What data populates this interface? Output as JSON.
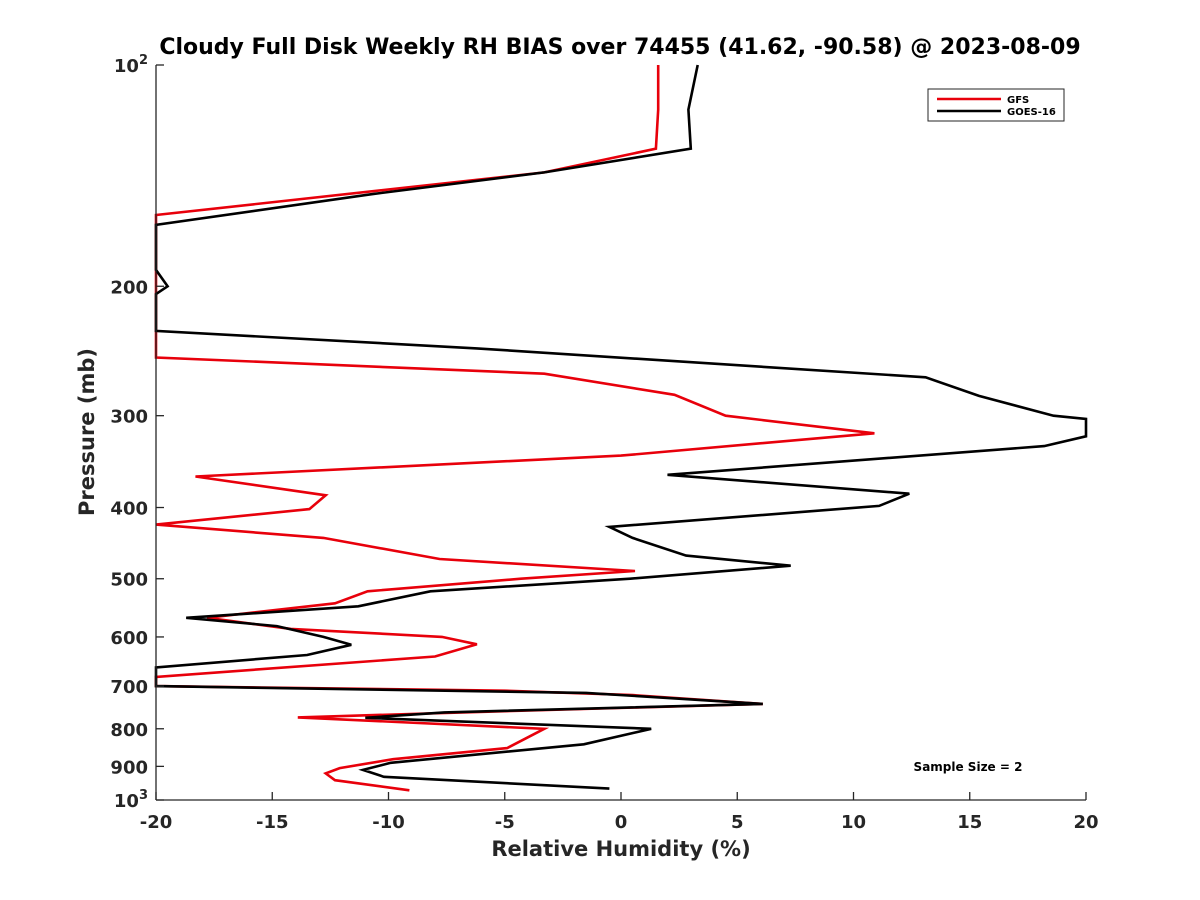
{
  "chart_data": {
    "type": "line",
    "title": "Cloudy Full Disk Weekly RH BIAS over 74455 (41.62, -90.58) @ 2023-08-09",
    "xlabel": "Relative Humidity (%)",
    "ylabel": "Pressure (mb)",
    "xlim": [
      -20,
      20
    ],
    "ylim": [
      100,
      1000
    ],
    "yscale": "log",
    "y_reversed": true,
    "x_ticks": [
      -20,
      -15,
      -10,
      -5,
      0,
      5,
      10,
      15,
      20
    ],
    "x_tick_labels": [
      "-20",
      "-15",
      "-10",
      "-5",
      "0",
      "5",
      "10",
      "15",
      "20"
    ],
    "y_ticks": [
      {
        "value": 100,
        "label": "10",
        "sup": "2"
      },
      {
        "value": 200,
        "label": "200"
      },
      {
        "value": 300,
        "label": "300"
      },
      {
        "value": 400,
        "label": "400"
      },
      {
        "value": 500,
        "label": "500"
      },
      {
        "value": 600,
        "label": "600"
      },
      {
        "value": 700,
        "label": "700"
      },
      {
        "value": 800,
        "label": "800"
      },
      {
        "value": 900,
        "label": "900"
      },
      {
        "value": 1000,
        "label": "10",
        "sup": "3"
      }
    ],
    "grid": false,
    "legend_position": "top-right",
    "annotation": "Sample Size = 2",
    "series": [
      {
        "name": "GFS",
        "color": "#e8000b",
        "points": [
          [
            1.6,
            100
          ],
          [
            1.6,
            115
          ],
          [
            1.5,
            130
          ],
          [
            -3.3,
            140
          ],
          [
            -20,
            160
          ],
          [
            -20,
            250
          ],
          [
            -3.3,
            263
          ],
          [
            2.3,
            281
          ],
          [
            4.5,
            300
          ],
          [
            10.9,
            317
          ],
          [
            0,
            340
          ],
          [
            -18.3,
            363
          ],
          [
            -12.7,
            385
          ],
          [
            -13.4,
            402
          ],
          [
            -20,
            422
          ],
          [
            -12.8,
            440
          ],
          [
            -7.8,
            470
          ],
          [
            0.6,
            488
          ],
          [
            -4.3,
            500
          ],
          [
            -10.9,
            520
          ],
          [
            -12.3,
            540
          ],
          [
            -17.8,
            565
          ],
          [
            -14.2,
            585
          ],
          [
            -7.7,
            600
          ],
          [
            -6.2,
            614
          ],
          [
            -8,
            638
          ],
          [
            -20,
            680
          ],
          [
            -20,
            700
          ],
          [
            -5,
            710
          ],
          [
            0.5,
            720
          ],
          [
            6.1,
            740
          ],
          [
            -6.8,
            760
          ],
          [
            -13.9,
            772
          ],
          [
            -3.3,
            800
          ],
          [
            -4.9,
            850
          ],
          [
            -9.8,
            880
          ],
          [
            -12.1,
            905
          ],
          [
            -12.7,
            920
          ],
          [
            -12.3,
            940
          ],
          [
            -9.1,
            970
          ]
        ]
      },
      {
        "name": "GOES-16",
        "color": "#000000",
        "points": [
          [
            3.3,
            100
          ],
          [
            2.9,
            115
          ],
          [
            3,
            130
          ],
          [
            -3.3,
            140
          ],
          [
            -10.8,
            150
          ],
          [
            -20,
            165
          ],
          [
            -20,
            190
          ],
          [
            -19.5,
            200
          ],
          [
            -20,
            205
          ],
          [
            -20,
            230
          ],
          [
            -6.2,
            243
          ],
          [
            13.1,
            266
          ],
          [
            15.4,
            282
          ],
          [
            18.6,
            300
          ],
          [
            20,
            303
          ],
          [
            20,
            320
          ],
          [
            18.2,
            330
          ],
          [
            2,
            361
          ],
          [
            12.4,
            383
          ],
          [
            11.1,
            398
          ],
          [
            -0.5,
            425
          ],
          [
            0.5,
            440
          ],
          [
            2.8,
            465
          ],
          [
            7.3,
            480
          ],
          [
            0.4,
            500
          ],
          [
            -8.2,
            520
          ],
          [
            -11.3,
            545
          ],
          [
            -18.7,
            565
          ],
          [
            -14.8,
            580
          ],
          [
            -12.8,
            600
          ],
          [
            -11.6,
            615
          ],
          [
            -13.5,
            635
          ],
          [
            -20,
            660
          ],
          [
            -20,
            700
          ],
          [
            -1.5,
            715
          ],
          [
            6.1,
            740
          ],
          [
            -7.6,
            760
          ],
          [
            -11,
            773
          ],
          [
            1.3,
            800
          ],
          [
            -1.6,
            840
          ],
          [
            -9.9,
            890
          ],
          [
            -11.1,
            910
          ],
          [
            -10.2,
            930
          ],
          [
            -0.5,
            965
          ]
        ]
      }
    ]
  }
}
